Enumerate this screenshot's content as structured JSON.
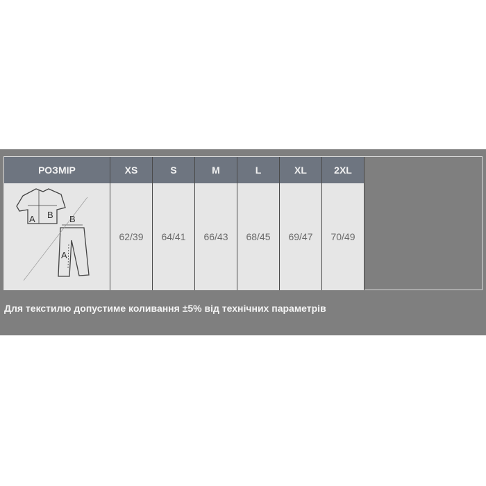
{
  "table": {
    "header_label": "РОЗМІР",
    "sizes": [
      "XS",
      "S",
      "M",
      "L",
      "XL",
      "2XL"
    ],
    "values": [
      "62/39",
      "64/41",
      "66/43",
      "68/45",
      "69/47",
      "70/49"
    ],
    "diagram": {
      "shirt_a": "A",
      "shirt_b": "B",
      "pants_a": "A",
      "pants_b": "B"
    }
  },
  "note": "Для текстилю допустиме коливання ±5% від технічних параметрів",
  "colors": {
    "band": "#7f7f7f",
    "header": "#6e7580",
    "body": "#e6e6e6"
  }
}
